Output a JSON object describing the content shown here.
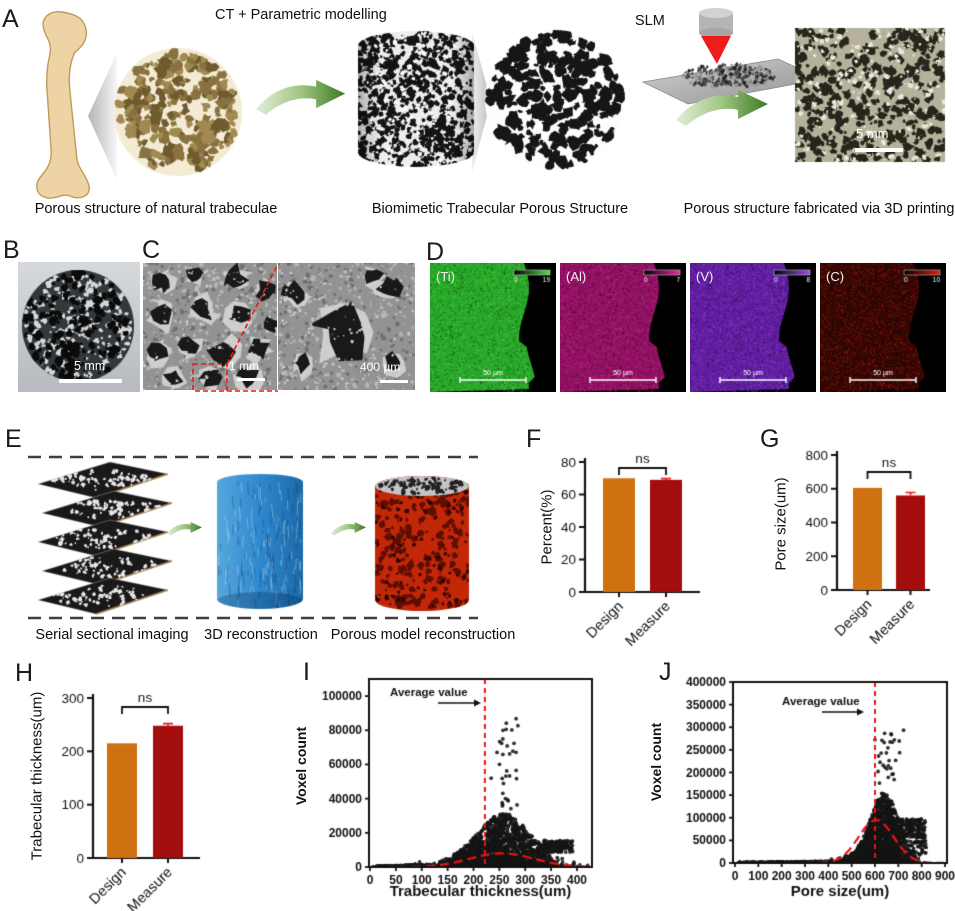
{
  "colors": {
    "bar_orange": "#cf7110",
    "bar_red": "#a40d0d",
    "accent_red": "#ee1111",
    "arrow_green": "#3c7a20",
    "error_bar_red": "#e31f1f"
  },
  "panel_a": {
    "letter": "A",
    "process_label": "CT + Parametric modelling",
    "slm_label": "SLM",
    "photo_scale": "5 mm",
    "caption_natural": "Porous structure of natural trabeculae",
    "caption_biomimetic": "Biomimetic Trabecular Porous Structure",
    "caption_printed": "Porous structure fabricated via 3D printing"
  },
  "panel_b": {
    "letter": "B",
    "scale": "5 mm"
  },
  "panel_c": {
    "letter": "C",
    "scale_left": "1 mm",
    "scale_right": "400 µm"
  },
  "panel_d": {
    "letter": "D",
    "maps": [
      {
        "element": "(Ti)",
        "color": "#35c435",
        "bar_min": "0",
        "bar_max": "19",
        "scale": "50 µm"
      },
      {
        "element": "(Al)",
        "color": "#e82aa0",
        "bar_min": "0",
        "bar_max": "7",
        "scale": "50 µm"
      },
      {
        "element": "(V)",
        "color": "#9a4ce8",
        "bar_min": "0",
        "bar_max": "8",
        "scale": "50 µm"
      },
      {
        "element": "(C)",
        "color": "#d81f10",
        "bar_min": "0",
        "bar_max": "10",
        "scale": "50 µm"
      }
    ]
  },
  "panel_e": {
    "letter": "E",
    "caption_slices": "Serial sectional imaging",
    "caption_3d": "3D reconstruction",
    "caption_porous": "Porous model reconstruction"
  },
  "chart_data": [
    {
      "panel": "F",
      "type": "bar",
      "ylabel": "Percent(%)",
      "categories": [
        "Design",
        "Measure"
      ],
      "values": [
        70,
        69
      ],
      "errors": [
        0,
        0.8
      ],
      "ylim": [
        0,
        80
      ],
      "yticks": [
        0,
        20,
        40,
        60,
        80
      ],
      "sig": "ns",
      "colors": [
        "#cf7110",
        "#a40d0d"
      ]
    },
    {
      "panel": "G",
      "type": "bar",
      "ylabel": "Pore size(um)",
      "categories": [
        "Design",
        "Measure"
      ],
      "values": [
        605,
        560
      ],
      "errors": [
        0,
        18
      ],
      "ylim": [
        0,
        800
      ],
      "yticks": [
        0,
        200,
        400,
        600,
        800
      ],
      "sig": "ns",
      "colors": [
        "#cf7110",
        "#a40d0d"
      ]
    },
    {
      "panel": "H",
      "type": "bar",
      "ylabel": "Trabecular thickness(um)",
      "categories": [
        "Design",
        "Measure"
      ],
      "values": [
        215,
        248
      ],
      "errors": [
        0,
        4
      ],
      "ylim": [
        0,
        300
      ],
      "yticks": [
        0,
        100,
        200,
        300
      ],
      "sig": "ns",
      "colors": [
        "#cf7110",
        "#a40d0d"
      ]
    },
    {
      "panel": "I",
      "type": "scatter",
      "xlabel": "Trabecular thickness(um)",
      "ylabel": "Voxel count",
      "xlim": [
        0,
        430
      ],
      "ylim": [
        0,
        110000
      ],
      "xticks": [
        0,
        50,
        100,
        150,
        200,
        250,
        300,
        350,
        400
      ],
      "yticks": [
        0,
        20000,
        40000,
        60000,
        80000,
        100000
      ],
      "annotation": "Average value",
      "average_x": 222,
      "fit": {
        "peak_x": 255,
        "peak_y": 8000,
        "sigma": 62
      },
      "cloud": {
        "seed": 7,
        "tail": [
          5,
          120,
          1600,
          150
        ],
        "main": {
          "n": 2400,
          "x_mean": 245,
          "x_sd": 52,
          "env_x": 258,
          "env_sd": 50,
          "y_max": 31000,
          "pow": 2.7
        },
        "spikes": {
          "n": 34,
          "x": 262,
          "sd": 13,
          "ymin": 33000,
          "ymax": 87000
        },
        "arms": [
          [
            322,
            392,
            8500,
            15500,
            150
          ]
        ]
      },
      "point_color": "#141414",
      "accent": "#ee1111"
    },
    {
      "panel": "J",
      "type": "scatter",
      "xlabel": "Pore size(um)",
      "ylabel": "Voxel count",
      "xlim": [
        0,
        930
      ],
      "ylim": [
        0,
        400000
      ],
      "xticks": [
        0,
        100,
        200,
        300,
        400,
        500,
        600,
        700,
        800,
        900
      ],
      "yticks": [
        0,
        50000,
        100000,
        150000,
        200000,
        250000,
        300000,
        350000,
        400000
      ],
      "annotation": "Average value",
      "average_x": 600,
      "fit": {
        "peak_x": 605,
        "peak_y": 95000,
        "sigma": 75
      },
      "cloud": {
        "seed": 11,
        "tail": [
          15,
          450,
          4500,
          300
        ],
        "main": {
          "n": 2100,
          "x_mean": 615,
          "x_sd": 62,
          "env_x": 640,
          "env_sd": 58,
          "y_max": 155000,
          "pow": 2.2
        },
        "spikes": {
          "n": 30,
          "x": 655,
          "sd": 25,
          "ymin": 165000,
          "ymax": 295000
        },
        "arms": [
          [
            672,
            815,
            55000,
            98000,
            200
          ],
          [
            740,
            820,
            20000,
            50000,
            45
          ]
        ]
      },
      "point_color": "#141414",
      "accent": "#ee1111"
    }
  ]
}
